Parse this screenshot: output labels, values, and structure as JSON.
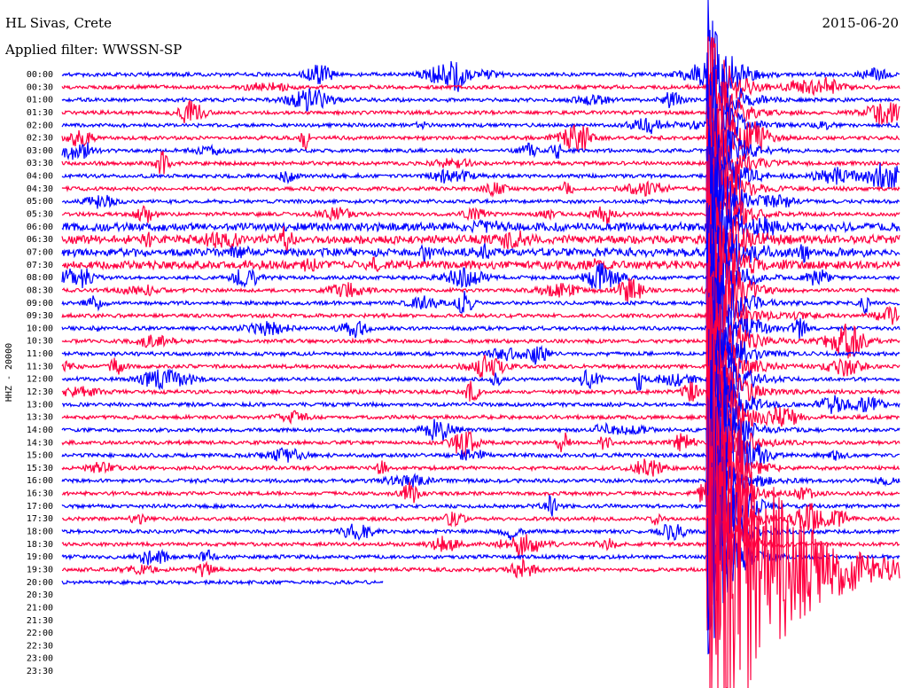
{
  "header": {
    "station": "HL Sivas, Crete",
    "date": "2015-06-20",
    "filter": "Applied filter: WWSSN-SP"
  },
  "axis_label": "HHZ - 20000",
  "rows": [
    "00:00",
    "00:30",
    "01:00",
    "01:30",
    "02:00",
    "02:30",
    "03:00",
    "03:30",
    "04:00",
    "04:30",
    "05:00",
    "05:30",
    "06:00",
    "06:30",
    "07:00",
    "07:30",
    "08:00",
    "08:30",
    "09:00",
    "09:30",
    "10:00",
    "10:30",
    "11:00",
    "11:30",
    "12:00",
    "12:30",
    "13:00",
    "13:30",
    "14:00",
    "14:30",
    "15:00",
    "15:30",
    "16:00",
    "16:30",
    "17:00",
    "17:30",
    "18:00",
    "18:30",
    "19:00",
    "19:30",
    "20:00",
    "20:30",
    "21:00",
    "21:30",
    "22:00",
    "22:30",
    "23:00",
    "23:30"
  ]
}
